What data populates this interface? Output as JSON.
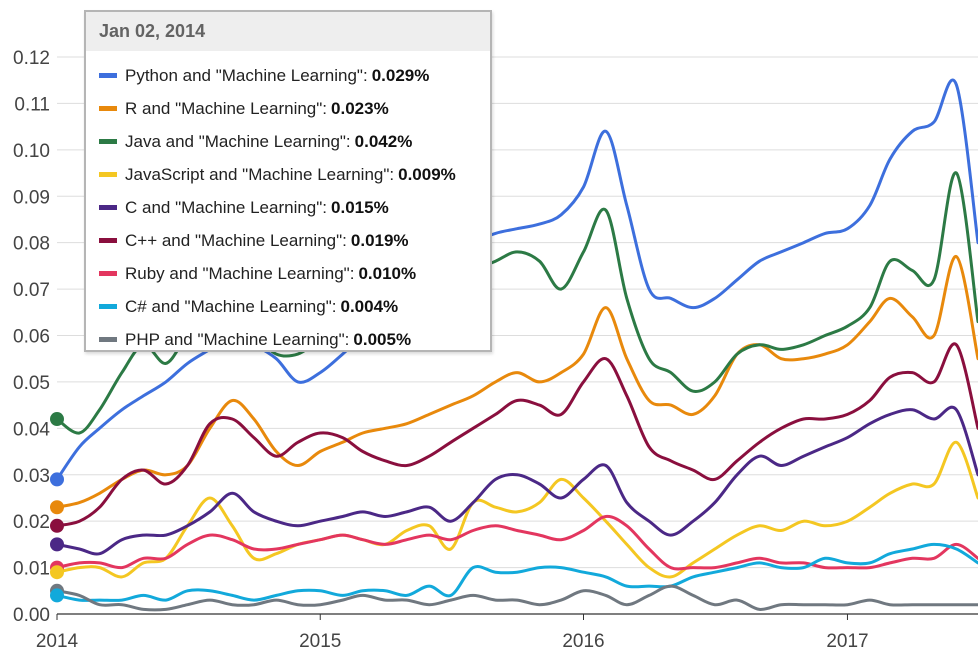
{
  "chart_data": {
    "type": "line",
    "title": "",
    "xlabel": "",
    "ylabel": "",
    "ylim": [
      0,
      0.12
    ],
    "y_ticks": [
      "0.00",
      "0.01",
      "0.02",
      "0.03",
      "0.04",
      "0.05",
      "0.06",
      "0.07",
      "0.08",
      "0.09",
      "0.10",
      "0.11",
      "0.12"
    ],
    "x_ticks": [
      "2014",
      "2015",
      "2016",
      "2017"
    ],
    "xlim": [
      "2014-01-01",
      "2017-07-01"
    ],
    "grid": true,
    "x": [
      "2014-01",
      "2014-02",
      "2014-03",
      "2014-04",
      "2014-05",
      "2014-06",
      "2014-07",
      "2014-08",
      "2014-09",
      "2014-10",
      "2014-11",
      "2014-12",
      "2015-01",
      "2015-02",
      "2015-03",
      "2015-04",
      "2015-05",
      "2015-06",
      "2015-07",
      "2015-08",
      "2015-09",
      "2015-10",
      "2015-11",
      "2015-12",
      "2016-01",
      "2016-02",
      "2016-03",
      "2016-04",
      "2016-05",
      "2016-06",
      "2016-07",
      "2016-08",
      "2016-09",
      "2016-10",
      "2016-11",
      "2016-12",
      "2017-01",
      "2017-02",
      "2017-03",
      "2017-04",
      "2017-05",
      "2017-06",
      "2017-07"
    ],
    "series": [
      {
        "name": "Python and \"Machine Learning\"",
        "color": "#3d6fdd",
        "values": [
          0.029,
          0.036,
          0.04,
          0.044,
          0.047,
          0.05,
          0.054,
          0.057,
          0.06,
          0.058,
          0.055,
          0.05,
          0.052,
          0.056,
          0.06,
          0.064,
          0.068,
          0.072,
          0.076,
          0.08,
          0.082,
          0.083,
          0.084,
          0.086,
          0.092,
          0.104,
          0.088,
          0.07,
          0.068,
          0.066,
          0.068,
          0.072,
          0.076,
          0.078,
          0.08,
          0.082,
          0.083,
          0.088,
          0.098,
          0.104,
          0.106,
          0.114,
          0.08
        ]
      },
      {
        "name": "R and \"Machine Learning\"",
        "color": "#e8890c",
        "values": [
          0.023,
          0.024,
          0.026,
          0.029,
          0.031,
          0.03,
          0.032,
          0.04,
          0.046,
          0.042,
          0.035,
          0.032,
          0.035,
          0.037,
          0.039,
          0.04,
          0.041,
          0.043,
          0.045,
          0.047,
          0.05,
          0.052,
          0.05,
          0.052,
          0.056,
          0.066,
          0.055,
          0.046,
          0.045,
          0.043,
          0.047,
          0.056,
          0.058,
          0.055,
          0.055,
          0.056,
          0.058,
          0.063,
          0.068,
          0.064,
          0.06,
          0.077,
          0.055
        ]
      },
      {
        "name": "Java and \"Machine Learning\"",
        "color": "#2c7a45",
        "values": [
          0.042,
          0.039,
          0.044,
          0.052,
          0.058,
          0.054,
          0.06,
          0.063,
          0.062,
          0.06,
          0.056,
          0.056,
          0.059,
          0.061,
          0.063,
          0.065,
          0.068,
          0.07,
          0.072,
          0.074,
          0.076,
          0.078,
          0.076,
          0.07,
          0.078,
          0.087,
          0.068,
          0.055,
          0.052,
          0.048,
          0.05,
          0.056,
          0.058,
          0.057,
          0.058,
          0.06,
          0.062,
          0.066,
          0.076,
          0.074,
          0.072,
          0.095,
          0.063
        ]
      },
      {
        "name": "JavaScript and \"Machine Learning\"",
        "color": "#f4c722",
        "values": [
          0.009,
          0.01,
          0.01,
          0.008,
          0.011,
          0.012,
          0.019,
          0.025,
          0.019,
          0.012,
          0.013,
          0.015,
          0.016,
          0.017,
          0.016,
          0.015,
          0.018,
          0.019,
          0.014,
          0.024,
          0.023,
          0.022,
          0.024,
          0.029,
          0.025,
          0.02,
          0.015,
          0.01,
          0.008,
          0.011,
          0.014,
          0.017,
          0.019,
          0.018,
          0.02,
          0.019,
          0.02,
          0.023,
          0.026,
          0.028,
          0.028,
          0.037,
          0.025
        ]
      },
      {
        "name": "C and \"Machine Learning\"",
        "color": "#4b2886",
        "values": [
          0.015,
          0.014,
          0.013,
          0.016,
          0.017,
          0.017,
          0.019,
          0.022,
          0.026,
          0.022,
          0.02,
          0.019,
          0.02,
          0.021,
          0.022,
          0.021,
          0.022,
          0.023,
          0.02,
          0.024,
          0.029,
          0.03,
          0.028,
          0.025,
          0.029,
          0.032,
          0.024,
          0.02,
          0.017,
          0.02,
          0.024,
          0.03,
          0.034,
          0.032,
          0.034,
          0.036,
          0.038,
          0.041,
          0.043,
          0.044,
          0.042,
          0.044,
          0.03
        ]
      },
      {
        "name": "C++ and \"Machine Learning\"",
        "color": "#8a0f3e",
        "values": [
          0.019,
          0.02,
          0.023,
          0.029,
          0.031,
          0.028,
          0.032,
          0.041,
          0.042,
          0.038,
          0.034,
          0.037,
          0.039,
          0.038,
          0.035,
          0.033,
          0.032,
          0.034,
          0.037,
          0.04,
          0.043,
          0.046,
          0.045,
          0.043,
          0.05,
          0.055,
          0.047,
          0.036,
          0.033,
          0.031,
          0.029,
          0.033,
          0.037,
          0.04,
          0.042,
          0.042,
          0.043,
          0.046,
          0.051,
          0.052,
          0.05,
          0.058,
          0.04
        ]
      },
      {
        "name": "Ruby and \"Machine Learning\"",
        "color": "#e3365f",
        "values": [
          0.01,
          0.011,
          0.011,
          0.01,
          0.012,
          0.012,
          0.015,
          0.017,
          0.016,
          0.014,
          0.014,
          0.015,
          0.016,
          0.017,
          0.016,
          0.015,
          0.016,
          0.017,
          0.016,
          0.018,
          0.019,
          0.018,
          0.017,
          0.016,
          0.018,
          0.021,
          0.019,
          0.014,
          0.01,
          0.01,
          0.01,
          0.011,
          0.012,
          0.011,
          0.011,
          0.01,
          0.01,
          0.01,
          0.011,
          0.012,
          0.012,
          0.015,
          0.012
        ]
      },
      {
        "name": "C# and \"Machine Learning\"",
        "color": "#12a9db",
        "values": [
          0.004,
          0.003,
          0.003,
          0.003,
          0.004,
          0.003,
          0.005,
          0.005,
          0.004,
          0.003,
          0.004,
          0.005,
          0.005,
          0.004,
          0.005,
          0.005,
          0.004,
          0.006,
          0.004,
          0.01,
          0.009,
          0.009,
          0.01,
          0.01,
          0.009,
          0.008,
          0.006,
          0.006,
          0.006,
          0.008,
          0.009,
          0.01,
          0.011,
          0.01,
          0.01,
          0.012,
          0.011,
          0.011,
          0.013,
          0.014,
          0.015,
          0.014,
          0.011
        ]
      },
      {
        "name": "PHP and \"Machine Learning\"",
        "color": "#707880",
        "values": [
          0.005,
          0.004,
          0.002,
          0.002,
          0.001,
          0.001,
          0.002,
          0.003,
          0.002,
          0.002,
          0.003,
          0.002,
          0.002,
          0.003,
          0.004,
          0.003,
          0.003,
          0.002,
          0.003,
          0.004,
          0.003,
          0.003,
          0.002,
          0.003,
          0.005,
          0.004,
          0.002,
          0.004,
          0.006,
          0.004,
          0.002,
          0.003,
          0.001,
          0.002,
          0.002,
          0.002,
          0.002,
          0.003,
          0.002,
          0.002,
          0.002,
          0.002,
          0.002
        ]
      }
    ]
  },
  "tooltip": {
    "date": "Jan 02, 2014",
    "rows": [
      {
        "label": "Python and \"Machine Learning\":",
        "value": "0.029%",
        "color": "#3d6fdd"
      },
      {
        "label": "R and \"Machine Learning\":",
        "value": "0.023%",
        "color": "#e8890c"
      },
      {
        "label": "Java and \"Machine Learning\":",
        "value": "0.042%",
        "color": "#2c7a45"
      },
      {
        "label": "JavaScript and \"Machine Learning\":",
        "value": "0.009%",
        "color": "#f4c722"
      },
      {
        "label": "C and \"Machine Learning\":",
        "value": "0.015%",
        "color": "#4b2886"
      },
      {
        "label": "C++ and \"Machine Learning\":",
        "value": "0.019%",
        "color": "#8a0f3e"
      },
      {
        "label": "Ruby and \"Machine Learning\":",
        "value": "0.010%",
        "color": "#e3365f"
      },
      {
        "label": "C# and \"Machine Learning\":",
        "value": "0.004%",
        "color": "#12a9db"
      },
      {
        "label": "PHP and \"Machine Learning\":",
        "value": "0.005%",
        "color": "#707880"
      }
    ]
  }
}
